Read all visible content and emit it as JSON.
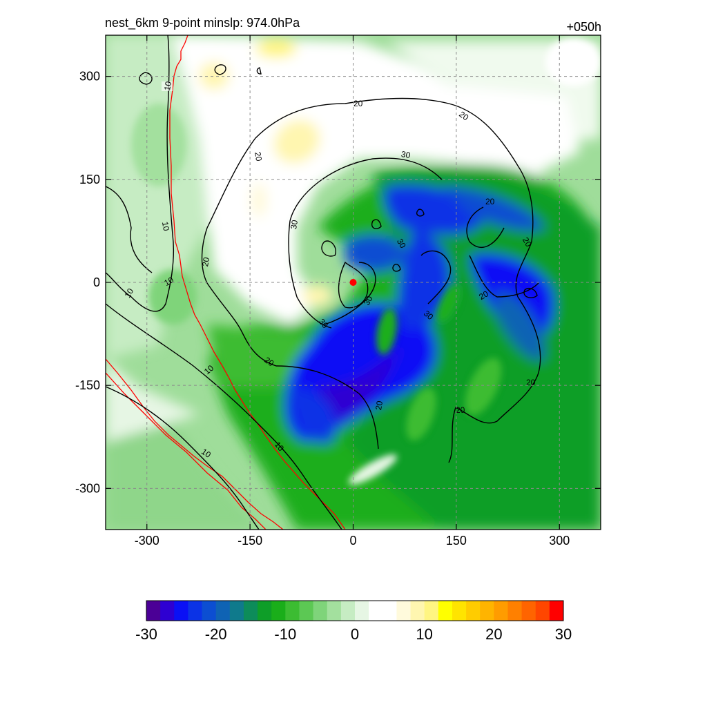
{
  "header": {
    "title": "nest_6km  9-point minslp: 974.0hPa",
    "forecast_hour": "+050h"
  },
  "chart_data": {
    "type": "heatmap",
    "title": "nest_6km  9-point minslp: 974.0hPa",
    "xlabel": "",
    "ylabel": "",
    "xlim": [
      -360,
      360
    ],
    "ylim": [
      -360,
      360
    ],
    "x_ticks": [
      "-300",
      "-150",
      "0",
      "150",
      "300"
    ],
    "y_ticks": [
      "300",
      "150",
      "0",
      "-150",
      "-300"
    ],
    "x_tick_values": [
      -300,
      -150,
      0,
      150,
      300
    ],
    "y_tick_values": [
      300,
      150,
      0,
      -150,
      -300
    ],
    "grid": true,
    "storm_center": {
      "x": 0,
      "y": 0,
      "color": "#ff0000"
    },
    "contour_levels": [
      "10",
      "20",
      "30"
    ],
    "colorbar": {
      "ticks": [
        "-30",
        "-20",
        "-10",
        "0",
        "10",
        "20",
        "30"
      ],
      "tick_values": [
        -30,
        -20,
        -10,
        0,
        10,
        20,
        30
      ],
      "colors": [
        "#4b0096",
        "#2e00d2",
        "#0a10f5",
        "#0b33e6",
        "#0c4ed2",
        "#0f63b4",
        "#0f7a8c",
        "#0d8c5a",
        "#0e9e28",
        "#1aae1a",
        "#3cbc32",
        "#5cc854",
        "#7fd47a",
        "#a3e09e",
        "#c6ecc3",
        "#e6f6e4",
        "#ffffff",
        "#ffffff",
        "#fffadc",
        "#fff6b0",
        "#fff582",
        "#ffff00",
        "#ffe400",
        "#ffcc00",
        "#ffb400",
        "#ff9c00",
        "#ff8000",
        "#ff6400",
        "#ff4600",
        "#ff0000"
      ]
    }
  }
}
